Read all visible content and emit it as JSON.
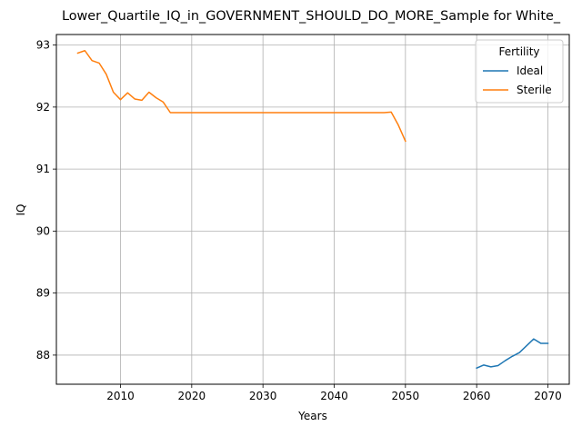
{
  "chart_data": {
    "type": "line",
    "title": "Lower_Quartile_IQ_in_GOVERNMENT_SHOULD_DO_MORE_Sample for White_",
    "xlabel": "Years",
    "ylabel": "IQ",
    "xlim": [
      2001,
      2073
    ],
    "ylim": [
      87.53,
      93.17
    ],
    "xticks": [
      2010,
      2020,
      2030,
      2040,
      2050,
      2060,
      2070
    ],
    "yticks": [
      88,
      89,
      90,
      91,
      92,
      93
    ],
    "grid": true,
    "legend": {
      "title": "Fertility",
      "placement": "upper right"
    },
    "series": [
      {
        "name": "Ideal",
        "color": "#1f77b4",
        "x": [
          2060,
          2061,
          2062,
          2063,
          2064,
          2065,
          2066,
          2067,
          2068,
          2069,
          2070
        ],
        "y": [
          87.79,
          87.84,
          87.81,
          87.83,
          87.91,
          87.98,
          88.04,
          88.15,
          88.26,
          88.19,
          88.19
        ]
      },
      {
        "name": "Sterile",
        "color": "#ff7f0e",
        "x": [
          2004,
          2005,
          2006,
          2007,
          2008,
          2009,
          2010,
          2011,
          2012,
          2013,
          2014,
          2015,
          2016,
          2017,
          2018,
          2019,
          2020,
          2025,
          2030,
          2035,
          2040,
          2045,
          2046,
          2047,
          2048,
          2049,
          2050
        ],
        "y": [
          92.87,
          92.91,
          92.75,
          92.71,
          92.53,
          92.24,
          92.12,
          92.23,
          92.13,
          92.11,
          92.24,
          92.15,
          92.08,
          91.91,
          91.91,
          91.91,
          91.91,
          91.91,
          91.91,
          91.91,
          91.91,
          91.91,
          91.91,
          91.91,
          91.92,
          91.71,
          91.45
        ]
      }
    ]
  }
}
